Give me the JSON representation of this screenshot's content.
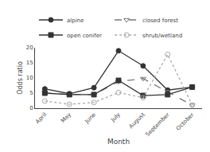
{
  "chart_data": {
    "type": "line",
    "xlabel": "Month",
    "ylabel": "Odds ratio",
    "categories": [
      "April",
      "May",
      "June",
      "July",
      "August",
      "September",
      "October"
    ],
    "series": [
      {
        "name": "alpine",
        "color": "#333333",
        "marker": "circle",
        "line_style": "solid",
        "values": [
          6.4,
          4.8,
          6.8,
          19.0,
          14.0,
          6.0,
          7.0
        ]
      },
      {
        "name": "closed forest",
        "color": "#777777",
        "marker": "triangle-down-open",
        "line_style": "dashed",
        "values": [
          5.0,
          4.6,
          4.5,
          8.8,
          9.8,
          5.5,
          1.0
        ]
      },
      {
        "name": "open conifer",
        "color": "#333333",
        "marker": "square",
        "line_style": "solid",
        "values": [
          5.0,
          4.5,
          4.5,
          9.2,
          4.2,
          4.5,
          7.0
        ]
      },
      {
        "name": "shrub/wetland",
        "color": "#aaaaaa",
        "marker": "circle-open",
        "line_style": "dotted",
        "values": [
          2.4,
          1.3,
          1.9,
          5.2,
          3.5,
          17.8,
          1.1
        ]
      }
    ],
    "ylim": [
      0,
      20
    ],
    "yticks": [
      0,
      5,
      10,
      15,
      20
    ],
    "grid": false,
    "legend": "upper left"
  }
}
